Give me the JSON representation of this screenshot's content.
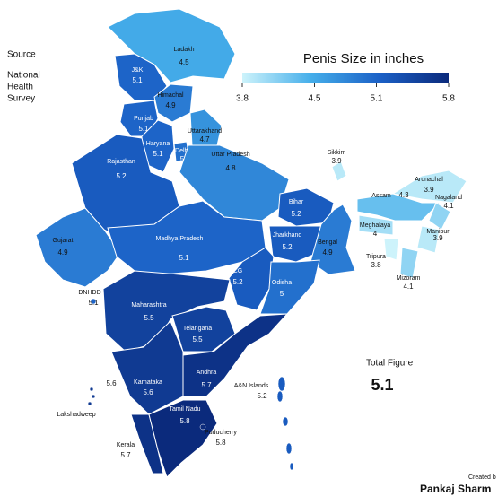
{
  "source_label": "Source",
  "source_lines": [
    "National",
    "Health",
    "Survey"
  ],
  "legend": {
    "title": "Penis Size in inches",
    "min": 3.8,
    "max": 5.8,
    "ticks": [
      3.8,
      4.5,
      5.1,
      5.8
    ],
    "colors": [
      "#cdf3fb",
      "#45aeea",
      "#1b60c6",
      "#0b2a7c"
    ]
  },
  "regions": [
    {
      "name": "Ladakh",
      "value": 4.5
    },
    {
      "name": "J&K",
      "value": 5.1
    },
    {
      "name": "Himachal",
      "value": 4.9
    },
    {
      "name": "Punjab",
      "value": 5.1
    },
    {
      "name": "Haryana",
      "value": 5.1
    },
    {
      "name": "Delhi",
      "value": 5
    },
    {
      "name": "Uttarakhand",
      "value": 4.7
    },
    {
      "name": "Uttar Pradesh",
      "value": 4.8
    },
    {
      "name": "Rajasthan",
      "value": 5.2
    },
    {
      "name": "Gujarat",
      "value": 4.9
    },
    {
      "name": "Madhya Pradesh",
      "value": 5.1
    },
    {
      "name": "Bihar",
      "value": 5.2
    },
    {
      "name": "Jharkhand",
      "value": 5.2
    },
    {
      "name": "Bengal",
      "value": 4.9
    },
    {
      "name": "CG",
      "value": 5.2
    },
    {
      "name": "Odisha",
      "value": 5
    },
    {
      "name": "Maharashtra",
      "value": 5.5
    },
    {
      "name": "Telangana",
      "value": 5.5
    },
    {
      "name": "Andhra",
      "value": 5.7
    },
    {
      "name": "Karnataka",
      "value": 5.6
    },
    {
      "name": "Kerala",
      "value": 5.7
    },
    {
      "name": "Tamil Nadu",
      "value": 5.8
    },
    {
      "name": "Sikkim",
      "value": 3.9
    },
    {
      "name": "Arunachal",
      "value": 3.9
    },
    {
      "name": "Assam",
      "value": 4.3
    },
    {
      "name": "Meghalaya",
      "value": 4
    },
    {
      "name": "Nagaland",
      "value": 4.1
    },
    {
      "name": "Manipur",
      "value": 3.9
    },
    {
      "name": "Tripura",
      "value": 3.8
    },
    {
      "name": "Mizoram",
      "value": 4.1
    },
    {
      "name": "A&N Islands",
      "value": 5.2
    },
    {
      "name": "Lakshadweep",
      "value": 5.6
    },
    {
      "name": "Puducherry",
      "value": 5.8
    },
    {
      "name": "DNHDD",
      "value": 5.1
    }
  ],
  "total": {
    "label": "Total Figure",
    "value": 5.1
  },
  "credit": {
    "line1": "Created b",
    "line2": "Pankaj Sharm"
  }
}
